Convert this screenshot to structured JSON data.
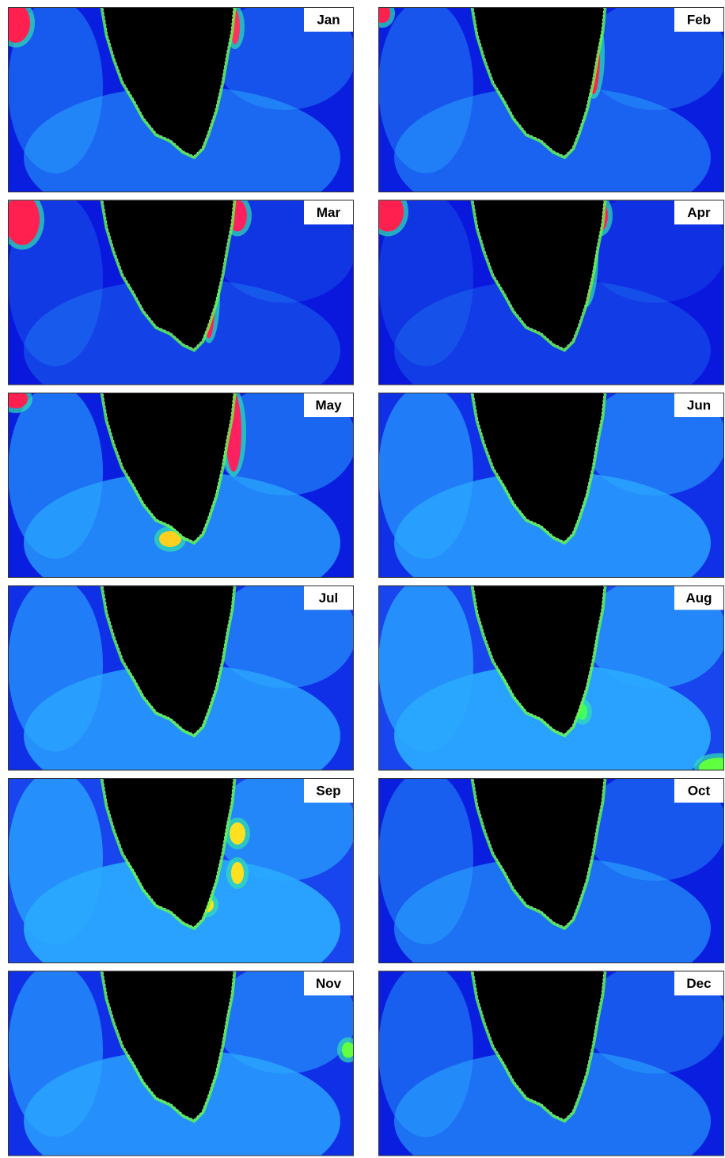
{
  "panels": [
    {
      "label": "Jan"
    },
    {
      "label": "Feb"
    },
    {
      "label": "Mar"
    },
    {
      "label": "Apr"
    },
    {
      "label": "May"
    },
    {
      "label": "Jun"
    },
    {
      "label": "Jul"
    },
    {
      "label": "Aug"
    },
    {
      "label": "Sep"
    },
    {
      "label": "Oct"
    },
    {
      "label": "Nov"
    },
    {
      "label": "Dec"
    }
  ]
}
